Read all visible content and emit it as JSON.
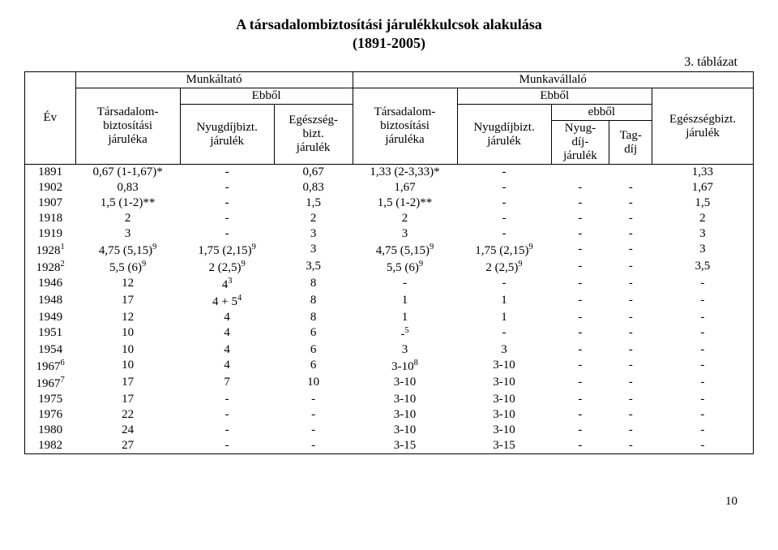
{
  "title": "A társadalombiztosítási járulékkulcsok alakulása",
  "subtitle": "(1891-2005)",
  "table_label": "3. táblázat",
  "page_number": "10",
  "header": {
    "ev": "Év",
    "munkaltato": "Munkáltató",
    "munkavallalo": "Munkavállaló",
    "tb_jaruleka": "Társadalom-\nbiztosítási\njáruléka",
    "ebbol": "Ebből",
    "nyugdijbizt_jarulek": "Nyugdíjbizt.\njárulék",
    "egeszsegbizt_jarulek": "Egészség-\nbizt.\njárulék",
    "tb_jaruleka2": "Társadalom-\nbiztosítási\njáruléka",
    "nyugdijbizt_jarulek2": "Nyugdíjbizt.\njárulék",
    "ebbol2": "ebből",
    "egeszsegbizt_jarulek2": "Egészségbizt.\njárulék",
    "nyugdijjarulek": "Nyug-\ndíj-\njárulék",
    "tagdij": "Tag-\ndíj"
  },
  "rows": [
    {
      "ev": "1891",
      "c1": "0,67 (1-1,67)*",
      "c2": "-",
      "c3": "0,67",
      "c4": "1,33 (2-3,33)*",
      "c5": "-",
      "c6": "",
      "c7": "",
      "c8": "1,33"
    },
    {
      "ev": "1902",
      "c1": "0,83",
      "c2": "-",
      "c3": "0,83",
      "c4": "1,67",
      "c5": "-",
      "c6": "-",
      "c7": "-",
      "c8": "1,67"
    },
    {
      "ev": "1907",
      "c1": "1,5 (1-2)**",
      "c2": "-",
      "c3": "1,5",
      "c4": "1,5 (1-2)**",
      "c5": "-",
      "c6": "-",
      "c7": "-",
      "c8": "1,5"
    },
    {
      "ev": "1918",
      "c1": "2",
      "c2": "-",
      "c3": "2",
      "c4": "2",
      "c5": "-",
      "c6": "-",
      "c7": "-",
      "c8": "2"
    },
    {
      "ev": "1919",
      "c1": "3",
      "c2": "-",
      "c3": "3",
      "c4": "3",
      "c5": "-",
      "c6": "-",
      "c7": "-",
      "c8": "3"
    },
    {
      "ev": "1928¹",
      "c1": "4,75 (5,15)⁹",
      "c2": "1,75 (2,15)⁹",
      "c3": "3",
      "c4": "4,75 (5,15)⁹",
      "c5": "1,75 (2,15)⁹",
      "c6": "-",
      "c7": "-",
      "c8": "3"
    },
    {
      "ev": "1928²",
      "c1": "5,5 (6)⁹",
      "c2": "2 (2,5)⁹",
      "c3": "3,5",
      "c4": "5,5 (6)⁹",
      "c5": "2 (2,5)⁹",
      "c6": "-",
      "c7": "-",
      "c8": "3,5"
    },
    {
      "ev": "1946",
      "c1": "12",
      "c2": "4³",
      "c3": "8",
      "c4": "-",
      "c5": "-",
      "c6": "-",
      "c7": "-",
      "c8": "-"
    },
    {
      "ev": "1948",
      "c1": "17",
      "c2": "4 + 5⁴",
      "c3": "8",
      "c4": "1",
      "c5": "1",
      "c6": "-",
      "c7": "-",
      "c8": "-"
    },
    {
      "ev": "1949",
      "c1": "12",
      "c2": "4",
      "c3": "8",
      "c4": "1",
      "c5": "1",
      "c6": "-",
      "c7": "-",
      "c8": "-"
    },
    {
      "ev": "1951",
      "c1": "10",
      "c2": "4",
      "c3": "6",
      "c4": "-⁵",
      "c5": "-",
      "c6": "-",
      "c7": "-",
      "c8": "-"
    },
    {
      "ev": "1954",
      "c1": "10",
      "c2": "4",
      "c3": "6",
      "c4": "3",
      "c5": "3",
      "c6": "-",
      "c7": "-",
      "c8": "-"
    },
    {
      "ev": "1967⁶",
      "c1": "10",
      "c2": "4",
      "c3": "6",
      "c4": "3-10⁸",
      "c5": "3-10",
      "c6": "-",
      "c7": "-",
      "c8": "-"
    },
    {
      "ev": "1967⁷",
      "c1": "17",
      "c2": "7",
      "c3": "10",
      "c4": "3-10",
      "c5": "3-10",
      "c6": "-",
      "c7": "-",
      "c8": "-"
    },
    {
      "ev": "1975",
      "c1": "17",
      "c2": "-",
      "c3": "-",
      "c4": "3-10",
      "c5": "3-10",
      "c6": "-",
      "c7": "-",
      "c8": "-"
    },
    {
      "ev": "1976",
      "c1": "22",
      "c2": "-",
      "c3": "-",
      "c4": "3-10",
      "c5": "3-10",
      "c6": "-",
      "c7": "-",
      "c8": "-"
    },
    {
      "ev": "1980",
      "c1": "24",
      "c2": "-",
      "c3": "-",
      "c4": "3-10",
      "c5": "3-10",
      "c6": "-",
      "c7": "-",
      "c8": "-"
    },
    {
      "ev": "1982",
      "c1": "27",
      "c2": "-",
      "c3": "-",
      "c4": "3-15",
      "c5": "3-15",
      "c6": "-",
      "c7": "-",
      "c8": "-"
    }
  ]
}
